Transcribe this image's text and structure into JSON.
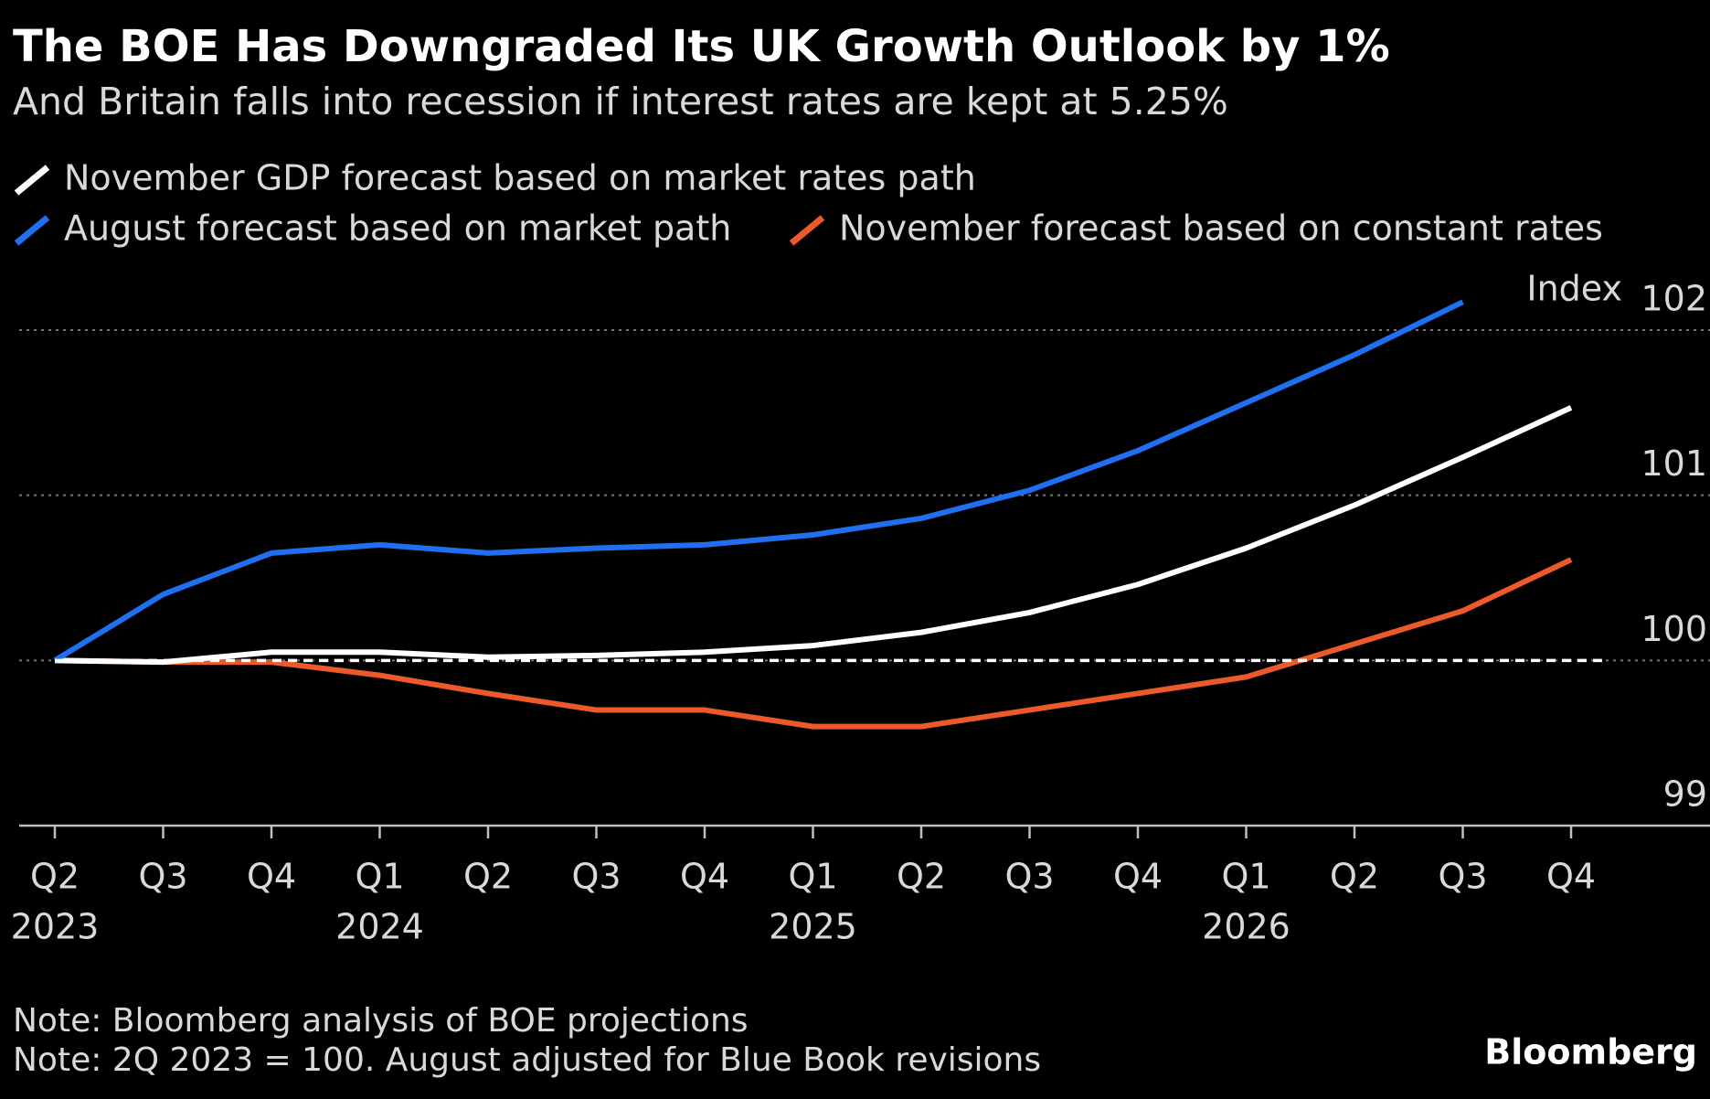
{
  "chart_data": {
    "type": "line",
    "title": "The BOE Has Downgraded Its UK Growth Outlook by 1%",
    "subtitle": "And Britain falls into recession if interest rates are kept at 5.25%",
    "y_axis_label": "Index",
    "categories": [
      "Q2",
      "Q3",
      "Q4",
      "Q1",
      "Q2",
      "Q3",
      "Q4",
      "Q1",
      "Q2",
      "Q3",
      "Q4",
      "Q1",
      "Q2",
      "Q3",
      "Q4"
    ],
    "category_years": [
      "2023",
      null,
      null,
      "2024",
      null,
      null,
      null,
      "2025",
      null,
      null,
      null,
      "2026",
      null,
      null,
      null
    ],
    "series": [
      {
        "name": "November GDP forecast based on market rates path",
        "color": "#ffffff",
        "values": [
          100,
          99.99,
          100.05,
          100.05,
          100.02,
          100.03,
          100.05,
          100.09,
          100.17,
          100.29,
          100.46,
          100.68,
          100.94,
          101.23,
          101.53
        ]
      },
      {
        "name": "August forecast based on market path",
        "color": "#1f6ff0",
        "values": [
          100,
          100.4,
          100.65,
          100.7,
          100.65,
          100.68,
          100.7,
          100.76,
          100.86,
          101.03,
          101.27,
          101.56,
          101.85,
          102.17,
          null
        ]
      },
      {
        "name": "November forecast based on constant rates",
        "color": "#ec5a2c",
        "values": [
          100,
          99.99,
          99.99,
          99.91,
          99.8,
          99.7,
          99.7,
          99.6,
          99.6,
          99.7,
          99.8,
          99.9,
          100.1,
          100.3,
          100.61
        ]
      }
    ],
    "reference_line": 100,
    "ylim": [
      99,
      102.2
    ],
    "yticks": [
      99,
      100,
      101,
      102
    ],
    "grid": true,
    "notes": [
      "Note: Bloomberg analysis of BOE projections",
      "Note: 2Q 2023 = 100. August adjusted for Blue Book revisions"
    ],
    "source": "Bloomberg"
  }
}
